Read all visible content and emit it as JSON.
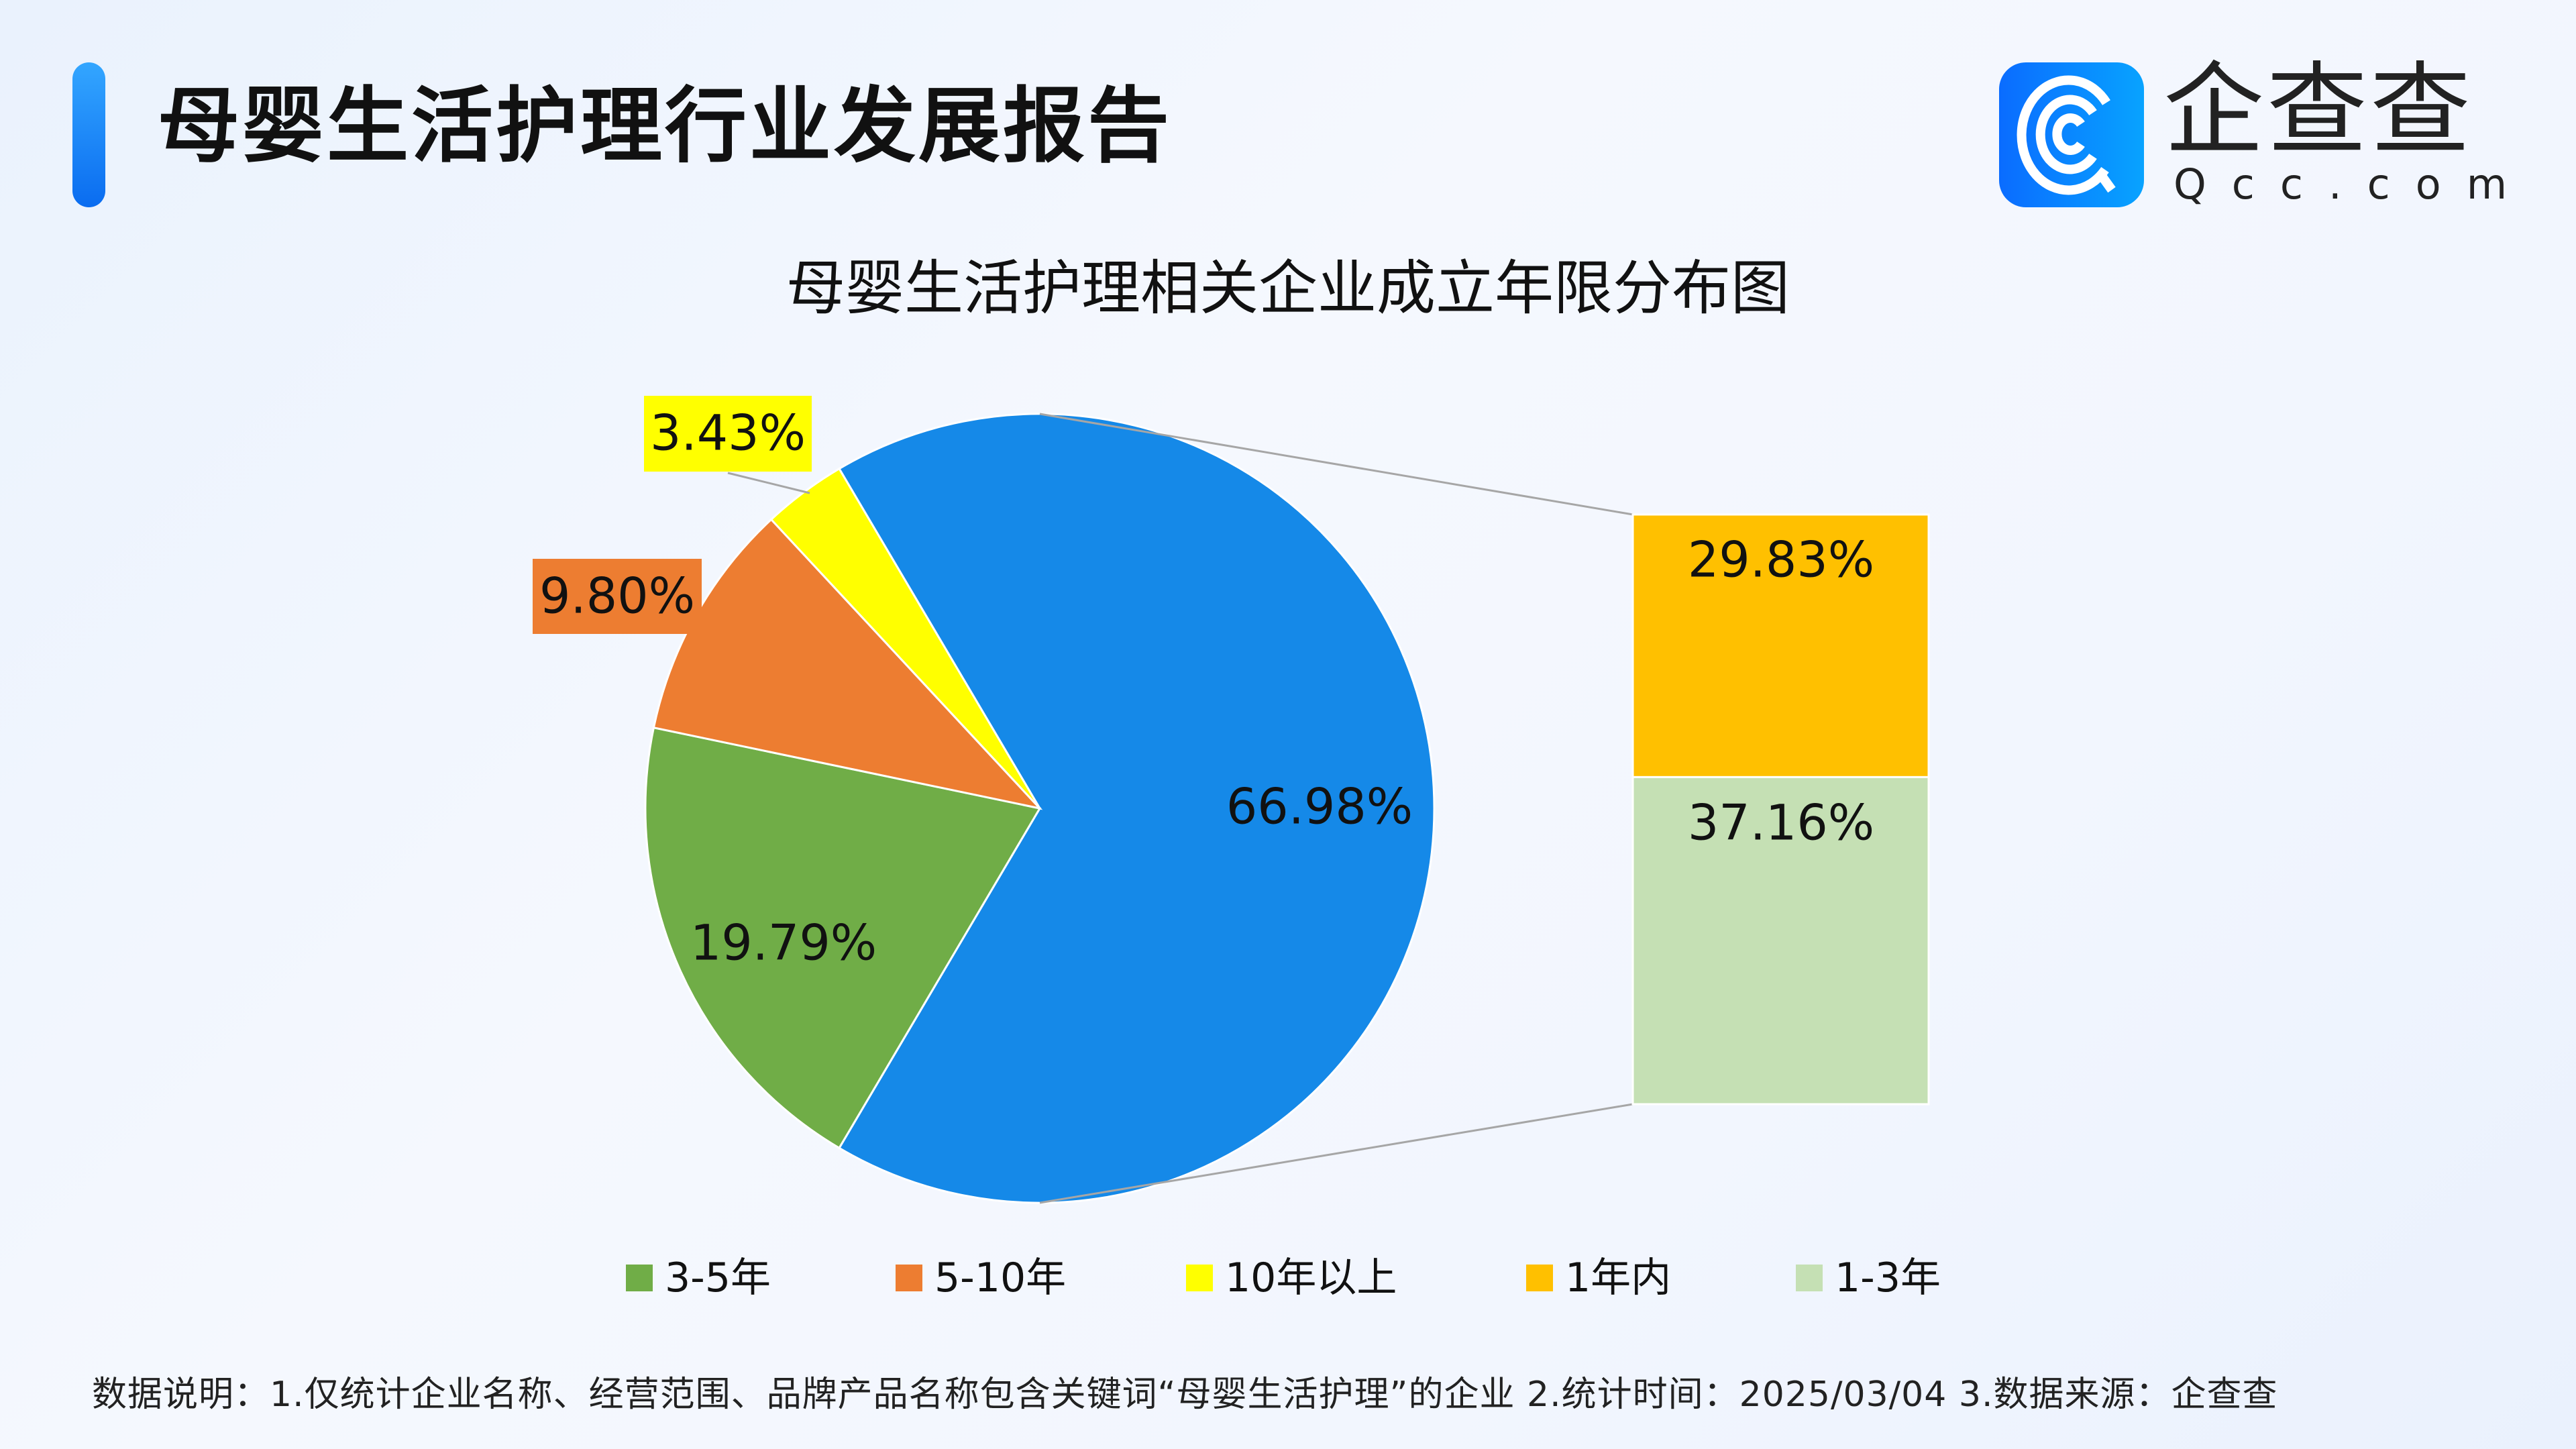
{
  "header": {
    "title": "母婴生活护理行业发展报告"
  },
  "logo": {
    "name_cn": "企查查",
    "name_en": "Qcc.com"
  },
  "footer": {
    "note": "数据说明：1.仅统计企业名称、经营范围、品牌产品名称包含关键词“母婴生活护理”的企业   2.统计时间：2025/03/04    3.数据来源：企查查"
  },
  "chart_data": {
    "type": "pie-of-bar",
    "title": "母婴生活护理相关企业成立年限分布图",
    "pie": [
      {
        "name": "3-5年",
        "value": 19.79,
        "label": "19.79%",
        "color": "#70ad47"
      },
      {
        "name": "5-10年",
        "value": 9.8,
        "label": "9.80%",
        "color": "#ed7d31"
      },
      {
        "name": "10年以上",
        "value": 3.43,
        "label": "3.43%",
        "color": "#ffff00"
      },
      {
        "name": "",
        "value": 66.98,
        "label": "66.98%",
        "color": "#1589e8"
      }
    ],
    "bar": [
      {
        "name": "1年内",
        "value": 29.83,
        "label": "29.83%",
        "color": "#ffc000"
      },
      {
        "name": "1-3年",
        "value": 37.16,
        "label": "37.16%",
        "color": "#c5e0b4"
      }
    ],
    "legend": [
      "3-5年",
      "5-10年",
      "10年以上",
      "1年内",
      "1-3年"
    ],
    "legend_position": "bottom"
  }
}
